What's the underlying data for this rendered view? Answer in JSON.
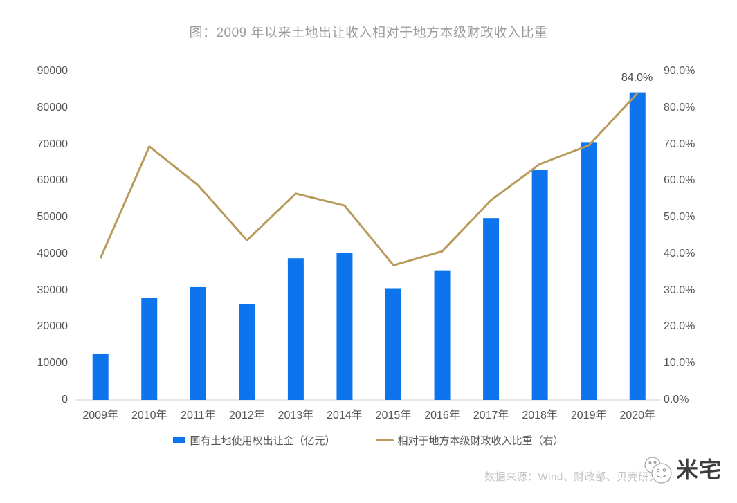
{
  "title": "图：2009 年以来土地出让收入相对于地方本级财政收入比重",
  "chart_data": {
    "type": "bar",
    "categories": [
      "2009年",
      "2010年",
      "2011年",
      "2012年",
      "2013年",
      "2014年",
      "2015年",
      "2016年",
      "2017年",
      "2018年",
      "2019年",
      "2020年"
    ],
    "series": [
      {
        "name": "国有土地使用权出让金（亿元）",
        "type": "bar",
        "axis": "left",
        "color": "#0d74ee",
        "values": [
          12700,
          27900,
          30900,
          26300,
          38800,
          40200,
          30600,
          35500,
          49800,
          63000,
          70600,
          84200
        ]
      },
      {
        "name": "相对于地方本级财政收入比重（右）",
        "type": "line",
        "axis": "right",
        "color": "#b89a5a",
        "values": [
          38.8,
          69.4,
          58.8,
          43.7,
          56.5,
          53.2,
          36.9,
          40.7,
          54.7,
          64.6,
          69.7,
          84.0
        ]
      }
    ],
    "left_axis": {
      "min": 0,
      "max": 90000,
      "step": 10000,
      "ticks": [
        "0",
        "10000",
        "20000",
        "30000",
        "40000",
        "50000",
        "60000",
        "70000",
        "80000",
        "90000"
      ]
    },
    "right_axis": {
      "min": 0,
      "max": 90,
      "step": 10,
      "ticks": [
        "0.0%",
        "10.0%",
        "20.0%",
        "30.0%",
        "40.0%",
        "50.0%",
        "60.0%",
        "70.0%",
        "80.0%",
        "90.0%"
      ]
    },
    "annotation": {
      "text": "84.0%",
      "series": "相对于地方本级财政收入比重（右）",
      "point_index": 11
    },
    "grid": "baseline-only",
    "legend_position": "bottom"
  },
  "legend": {
    "items": [
      {
        "label": "国有土地使用权出让金（亿元）",
        "swatch": "bar",
        "color": "#0d74ee"
      },
      {
        "label": "相对于地方本级财政收入比重（右）",
        "swatch": "line",
        "color": "#b89a5a"
      }
    ]
  },
  "footer": {
    "source": "数据来源：Wind、财政部、贝壳研究院",
    "logo_text": "米宅"
  },
  "colors": {
    "bar": "#0d74ee",
    "line": "#b89a5a",
    "title": "#9c9c9c",
    "axis_label": "#555555",
    "baseline": "#e8e8e8",
    "source_text": "#c4c4c4",
    "annotation": "#4a4a4a"
  }
}
